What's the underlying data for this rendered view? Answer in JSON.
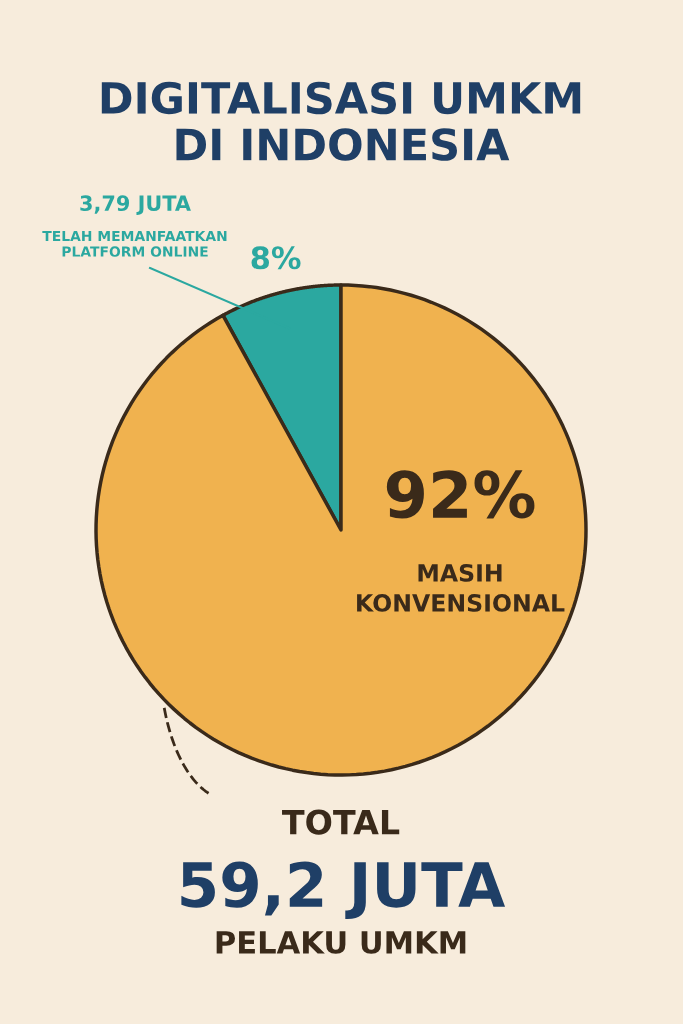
{
  "chart_data": {
    "type": "pie",
    "title": "DIGITALISASI UMKM\nDI INDONESIA",
    "categories": [
      "TELAH MEMANFAATKAN\nPLATFORM ONLINE",
      "MASIH\nKONVENSIONAL"
    ],
    "values": [
      8,
      92
    ],
    "colors": [
      "#2ba8a0",
      "#f0b24f"
    ],
    "value_labels": [
      "8%",
      "92%"
    ],
    "annotations": [
      "3,79 JUTA",
      "TOTAL",
      "59,2 JUTA",
      "PELAKU UMKM"
    ]
  }
}
